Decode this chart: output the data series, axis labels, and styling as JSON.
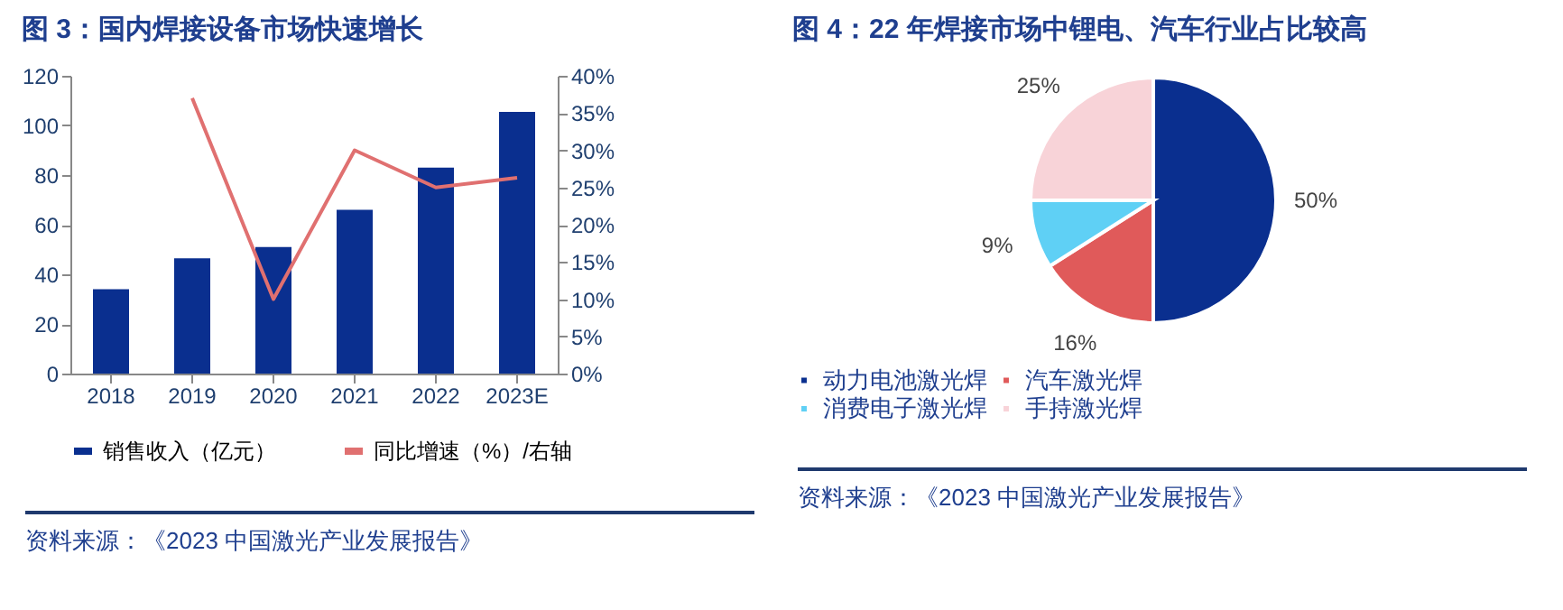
{
  "chart_data": [
    {
      "type": "bar",
      "title": "图 3：国内焊接设备市场快速增长",
      "categories": [
        "2018",
        "2019",
        "2020",
        "2021",
        "2022",
        "2023E"
      ],
      "series": [
        {
          "name": "销售收入（亿元）",
          "color": "#0a2f8f",
          "values": [
            34,
            46.5,
            51,
            66,
            83,
            105.5
          ]
        },
        {
          "name": "同比增速（%）/右轴",
          "type": "line",
          "axis": "y2",
          "color": "#e07070",
          "values": [
            null,
            37,
            10,
            30,
            25,
            26.3
          ]
        }
      ],
      "ylim": [
        0,
        120
      ],
      "yticks": [
        0,
        20,
        40,
        60,
        80,
        100,
        120
      ],
      "y2lim": [
        0,
        40
      ],
      "y2ticks": [
        {
          "value": 0,
          "label": "0%"
        },
        {
          "value": 5,
          "label": "5%"
        },
        {
          "value": 10,
          "label": "10%"
        },
        {
          "value": 15,
          "label": "15%"
        },
        {
          "value": 20,
          "label": "20%"
        },
        {
          "value": 25,
          "label": "25%"
        },
        {
          "value": 30,
          "label": "30%"
        },
        {
          "value": 35,
          "label": "35%"
        },
        {
          "value": 40,
          "label": "40%"
        }
      ],
      "legend": "bottom",
      "annotations": [
        "资料来源：《2023 中国激光产业发展报告》"
      ]
    },
    {
      "type": "pie",
      "title": "图 4：22 年焊接市场中锂电、汽车行业占比较高",
      "categories": [
        "动力电池激光焊",
        "汽车激光焊",
        "消费电子激光焊",
        "手持激光焊"
      ],
      "values": [
        50,
        16,
        9,
        25
      ],
      "colors": [
        "#0a2f8f",
        "#e05a5a",
        "#5fd0f5",
        "#f8d3d8"
      ],
      "value_labels": [
        "50%",
        "16%",
        "9%",
        "25%"
      ],
      "legend": "bottom",
      "annotations": [
        "资料来源：《2023 中国激光产业发展报告》"
      ]
    }
  ]
}
